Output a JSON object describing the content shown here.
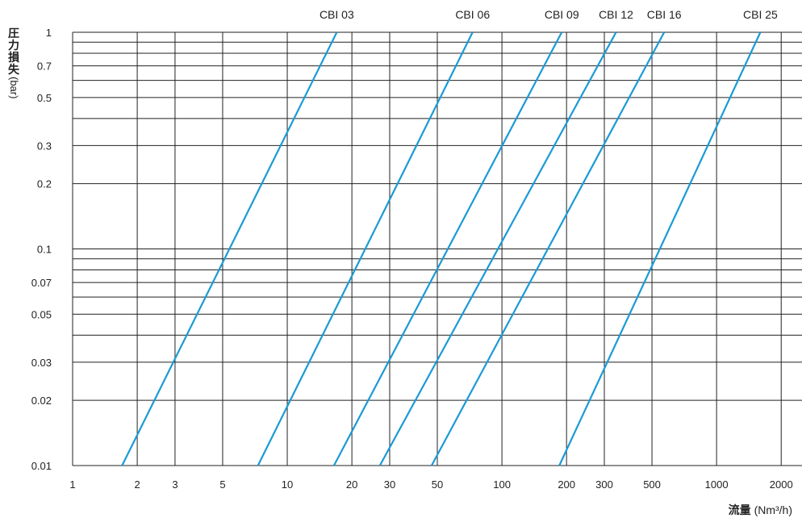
{
  "chart_data": {
    "type": "line",
    "xscale": "log",
    "yscale": "log",
    "xlim": [
      1,
      2500
    ],
    "ylim": [
      0.01,
      1
    ],
    "grid": true,
    "xticks": [
      {
        "value": 1,
        "label": "1"
      },
      {
        "value": 2,
        "label": "2"
      },
      {
        "value": 3,
        "label": "3"
      },
      {
        "value": 5,
        "label": "5"
      },
      {
        "value": 10,
        "label": "10"
      },
      {
        "value": 20,
        "label": "20"
      },
      {
        "value": 30,
        "label": "30"
      },
      {
        "value": 50,
        "label": "50"
      },
      {
        "value": 100,
        "label": "100"
      },
      {
        "value": 200,
        "label": "200"
      },
      {
        "value": 300,
        "label": "300"
      },
      {
        "value": 500,
        "label": "500"
      },
      {
        "value": 1000,
        "label": "1000"
      },
      {
        "value": 2000,
        "label": "2000"
      }
    ],
    "yticks": [
      {
        "value": 0.01,
        "label": "0.01"
      },
      {
        "value": 0.02,
        "label": "0.02"
      },
      {
        "value": 0.03,
        "label": "0.03"
      },
      {
        "value": 0.05,
        "label": "0.05"
      },
      {
        "value": 0.07,
        "label": "0.07"
      },
      {
        "value": 0.1,
        "label": "0.1"
      },
      {
        "value": 0.2,
        "label": "0.2"
      },
      {
        "value": 0.3,
        "label": "0.3"
      },
      {
        "value": 0.5,
        "label": "0.5"
      },
      {
        "value": 0.7,
        "label": "0.7"
      },
      {
        "value": 1,
        "label": "1"
      }
    ],
    "x_gridlines": [
      1,
      2,
      3,
      5,
      10,
      20,
      30,
      50,
      100,
      200,
      300,
      500,
      1000,
      2000
    ],
    "y_gridlines": [
      0.01,
      0.02,
      0.03,
      0.04,
      0.05,
      0.06,
      0.07,
      0.08,
      0.09,
      0.1,
      0.2,
      0.3,
      0.4,
      0.5,
      0.6,
      0.7,
      0.8,
      0.9,
      1
    ],
    "ylabel": "圧力損失",
    "ylabel_unit": "(bar)",
    "xlabel": "流量",
    "xlabel_unit": "(Nm³/h)",
    "series": [
      {
        "name": "CBI 03",
        "x": [
          1.7,
          17.0
        ],
        "y": [
          0.01,
          1
        ]
      },
      {
        "name": "CBI 06",
        "x": [
          7.3,
          73.0
        ],
        "y": [
          0.01,
          1
        ]
      },
      {
        "name": "CBI 09",
        "x": [
          16.5,
          190.0
        ],
        "y": [
          0.01,
          1
        ]
      },
      {
        "name": "CBI 12",
        "x": [
          27.0,
          340.0
        ],
        "y": [
          0.01,
          1
        ]
      },
      {
        "name": "CBI 16",
        "x": [
          47.0,
          570.0
        ],
        "y": [
          0.01,
          1
        ]
      },
      {
        "name": "CBI 25",
        "x": [
          185.0,
          1600.0
        ],
        "y": [
          0.01,
          1
        ]
      }
    ],
    "line_color": "#1a9ad6",
    "grid_color": "#222222"
  }
}
